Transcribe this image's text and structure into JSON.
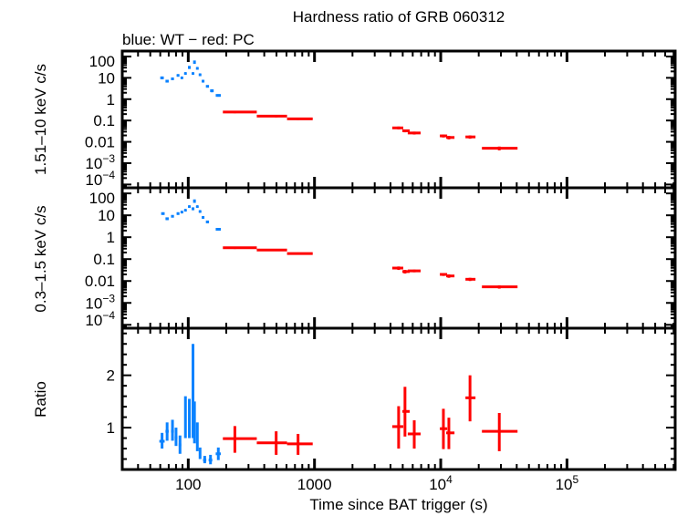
{
  "chart_data": {
    "type": "scatter",
    "title": "Hardness ratio of GRB 060312",
    "subtitle": "blue: WT − red: PC",
    "xlabel": "Time since BAT trigger (s)",
    "xscale": "log",
    "xlim": [
      30,
      720000
    ],
    "xticks": [
      {
        "v": 100,
        "label": "100"
      },
      {
        "v": 1000,
        "label": "1000"
      },
      {
        "v": 10000,
        "base": "10",
        "exp": "4"
      },
      {
        "v": 100000,
        "base": "10",
        "exp": "5"
      }
    ],
    "colors": {
      "WT": "#0a82ff",
      "PC": "#ff0000"
    },
    "point_format": [
      "t",
      "t_low",
      "t_high",
      "y",
      "y_low",
      "y_high"
    ],
    "panels": [
      {
        "ylabel": "1.51–10 keV c/s",
        "yscale": "log",
        "ylim": [
          7e-05,
          180
        ],
        "yticks": [
          {
            "v": 100,
            "label": "100"
          },
          {
            "v": 10,
            "label": "10"
          },
          {
            "v": 1,
            "label": "1"
          },
          {
            "v": 0.1,
            "label": "0.1"
          },
          {
            "v": 0.01,
            "label": "0.01"
          },
          {
            "v": 0.001,
            "base": "10",
            "exp": "−3"
          },
          {
            "v": 0.0001,
            "base": "10",
            "exp": "−4"
          }
        ],
        "series": [
          {
            "mode": "WT",
            "points": [
              [
                62,
                60,
                64,
                10,
                8.5,
                11.5
              ],
              [
                68,
                66,
                70,
                7,
                6,
                8
              ],
              [
                75,
                73,
                77,
                9,
                8,
                10
              ],
              [
                83,
                81,
                85,
                13,
                11.5,
                14.5
              ],
              [
                89,
                87,
                91,
                10,
                9,
                11
              ],
              [
                95,
                93,
                97,
                16,
                14,
                18
              ],
              [
                102,
                100,
                104,
                31,
                26,
                36
              ],
              [
                109,
                107,
                111,
                16,
                14,
                18
              ],
              [
                112,
                110,
                114,
                55,
                45,
                65
              ],
              [
                118,
                116,
                120,
                28,
                24,
                32
              ],
              [
                124,
                122,
                126,
                14,
                12,
                16
              ],
              [
                131,
                128,
                134,
                7,
                6,
                8
              ],
              [
                142,
                138,
                146,
                4,
                3.5,
                4.5
              ],
              [
                154,
                149,
                159,
                2.5,
                2.1,
                2.9
              ],
              [
                173,
                165,
                181,
                1.5,
                1.3,
                1.7
              ]
            ]
          },
          {
            "mode": "PC",
            "points": [
              [
                234,
                188,
                349,
                0.25,
                0.22,
                0.28
              ],
              [
                497,
                349,
                606,
                0.16,
                0.14,
                0.18
              ],
              [
                741,
                606,
                968,
                0.12,
                0.105,
                0.135
              ],
              [
                4640,
                4130,
                5050,
                0.045,
                0.038,
                0.052
              ],
              [
                5210,
                4970,
                5680,
                0.033,
                0.028,
                0.038
              ],
              [
                6170,
                5480,
                6930,
                0.026,
                0.022,
                0.03
              ],
              [
                10500,
                9840,
                11250,
                0.019,
                0.016,
                0.022
              ],
              [
                11600,
                11050,
                12850,
                0.016,
                0.013,
                0.019
              ],
              [
                17060,
                15700,
                18850,
                0.017,
                0.014,
                0.02
              ],
              [
                29100,
                21200,
                40600,
                0.005,
                0.004,
                0.006
              ]
            ]
          }
        ]
      },
      {
        "ylabel": "0.3–1.5 keV c/s",
        "yscale": "log",
        "ylim": [
          7e-05,
          180
        ],
        "yticks": [
          {
            "v": 100,
            "label": "100"
          },
          {
            "v": 10,
            "label": "10"
          },
          {
            "v": 1,
            "label": "1"
          },
          {
            "v": 0.1,
            "label": "0.1"
          },
          {
            "v": 0.01,
            "label": "0.01"
          },
          {
            "v": 0.001,
            "base": "10",
            "exp": "−3"
          },
          {
            "v": 0.0001,
            "base": "10",
            "exp": "−4"
          }
        ],
        "series": [
          {
            "mode": "WT",
            "points": [
              [
                63,
                61,
                65,
                12,
                10.5,
                13.5
              ],
              [
                68,
                66,
                70,
                7,
                6,
                8
              ],
              [
                75,
                73,
                77,
                9,
                8,
                10
              ],
              [
                83,
                81,
                85,
                12,
                10.5,
                13.5
              ],
              [
                89,
                87,
                91,
                14,
                12.5,
                15.5
              ],
              [
                95,
                93,
                97,
                17,
                15,
                19
              ],
              [
                102,
                100,
                104,
                25,
                22,
                28
              ],
              [
                109,
                107,
                111,
                20,
                17,
                23
              ],
              [
                112,
                110,
                114,
                45,
                37,
                53
              ],
              [
                118,
                116,
                120,
                25,
                22,
                28
              ],
              [
                124,
                122,
                126,
                15,
                13,
                17
              ],
              [
                131,
                128,
                134,
                8,
                7,
                9
              ],
              [
                142,
                138,
                146,
                5,
                4.4,
                5.6
              ],
              [
                173,
                165,
                181,
                2.3,
                2,
                2.6
              ]
            ]
          },
          {
            "mode": "PC",
            "points": [
              [
                234,
                188,
                349,
                0.33,
                0.29,
                0.37
              ],
              [
                497,
                349,
                606,
                0.26,
                0.23,
                0.29
              ],
              [
                741,
                606,
                968,
                0.18,
                0.16,
                0.2
              ],
              [
                4640,
                4130,
                5050,
                0.039,
                0.032,
                0.046
              ],
              [
                5210,
                4970,
                5680,
                0.027,
                0.022,
                0.032
              ],
              [
                6170,
                5480,
                6930,
                0.029,
                0.025,
                0.033
              ],
              [
                10500,
                9840,
                11250,
                0.02,
                0.017,
                0.023
              ],
              [
                11600,
                11050,
                12850,
                0.017,
                0.014,
                0.02
              ],
              [
                17060,
                15700,
                18850,
                0.012,
                0.01,
                0.014
              ],
              [
                29100,
                21200,
                40600,
                0.0054,
                0.0045,
                0.0063
              ]
            ]
          }
        ]
      },
      {
        "ylabel": "Ratio",
        "yscale": "linear",
        "ylim": [
          0.2,
          2.9
        ],
        "yticks": [
          {
            "v": 1,
            "label": "1"
          },
          {
            "v": 2,
            "label": "2"
          }
        ],
        "series": [
          {
            "mode": "WT",
            "points": [
              [
                62,
                59,
                65,
                0.74,
                0.6,
                0.9
              ],
              [
                68,
                66,
                70,
                0.93,
                0.75,
                1.1
              ],
              [
                75,
                73,
                77,
                0.93,
                0.75,
                1.15
              ],
              [
                80,
                78,
                82,
                0.81,
                0.65,
                1.0
              ],
              [
                86,
                84,
                88,
                0.67,
                0.5,
                0.85
              ],
              [
                95,
                93,
                97,
                1.21,
                0.8,
                1.6
              ],
              [
                102,
                100,
                104,
                1.16,
                0.8,
                1.55
              ],
              [
                109,
                107,
                111,
                2.07,
                0.8,
                2.6
              ],
              [
                112,
                110,
                114,
                1.1,
                0.7,
                1.5
              ],
              [
                118,
                116,
                120,
                0.81,
                0.55,
                1.1
              ],
              [
                124,
                122,
                126,
                0.5,
                0.4,
                0.62
              ],
              [
                135,
                131,
                139,
                0.38,
                0.32,
                0.46
              ],
              [
                150,
                145,
                155,
                0.38,
                0.3,
                0.48
              ],
              [
                173,
                165,
                181,
                0.5,
                0.38,
                0.62
              ]
            ]
          },
          {
            "mode": "PC",
            "points": [
              [
                234,
                188,
                349,
                0.79,
                0.52,
                1.03
              ],
              [
                497,
                349,
                606,
                0.71,
                0.48,
                0.93
              ],
              [
                741,
                606,
                968,
                0.69,
                0.48,
                0.88
              ],
              [
                4640,
                4130,
                5050,
                1.02,
                0.6,
                1.41
              ],
              [
                5210,
                4970,
                5680,
                1.31,
                0.83,
                1.78
              ],
              [
                6170,
                5480,
                6930,
                0.88,
                0.6,
                1.14
              ],
              [
                10500,
                9840,
                11250,
                0.98,
                0.59,
                1.36
              ],
              [
                11600,
                11050,
                12850,
                0.9,
                0.59,
                1.19
              ],
              [
                17060,
                15700,
                18850,
                1.57,
                1.12,
                2.0
              ],
              [
                29100,
                21200,
                40600,
                0.93,
                0.55,
                1.28
              ]
            ]
          }
        ]
      }
    ]
  }
}
